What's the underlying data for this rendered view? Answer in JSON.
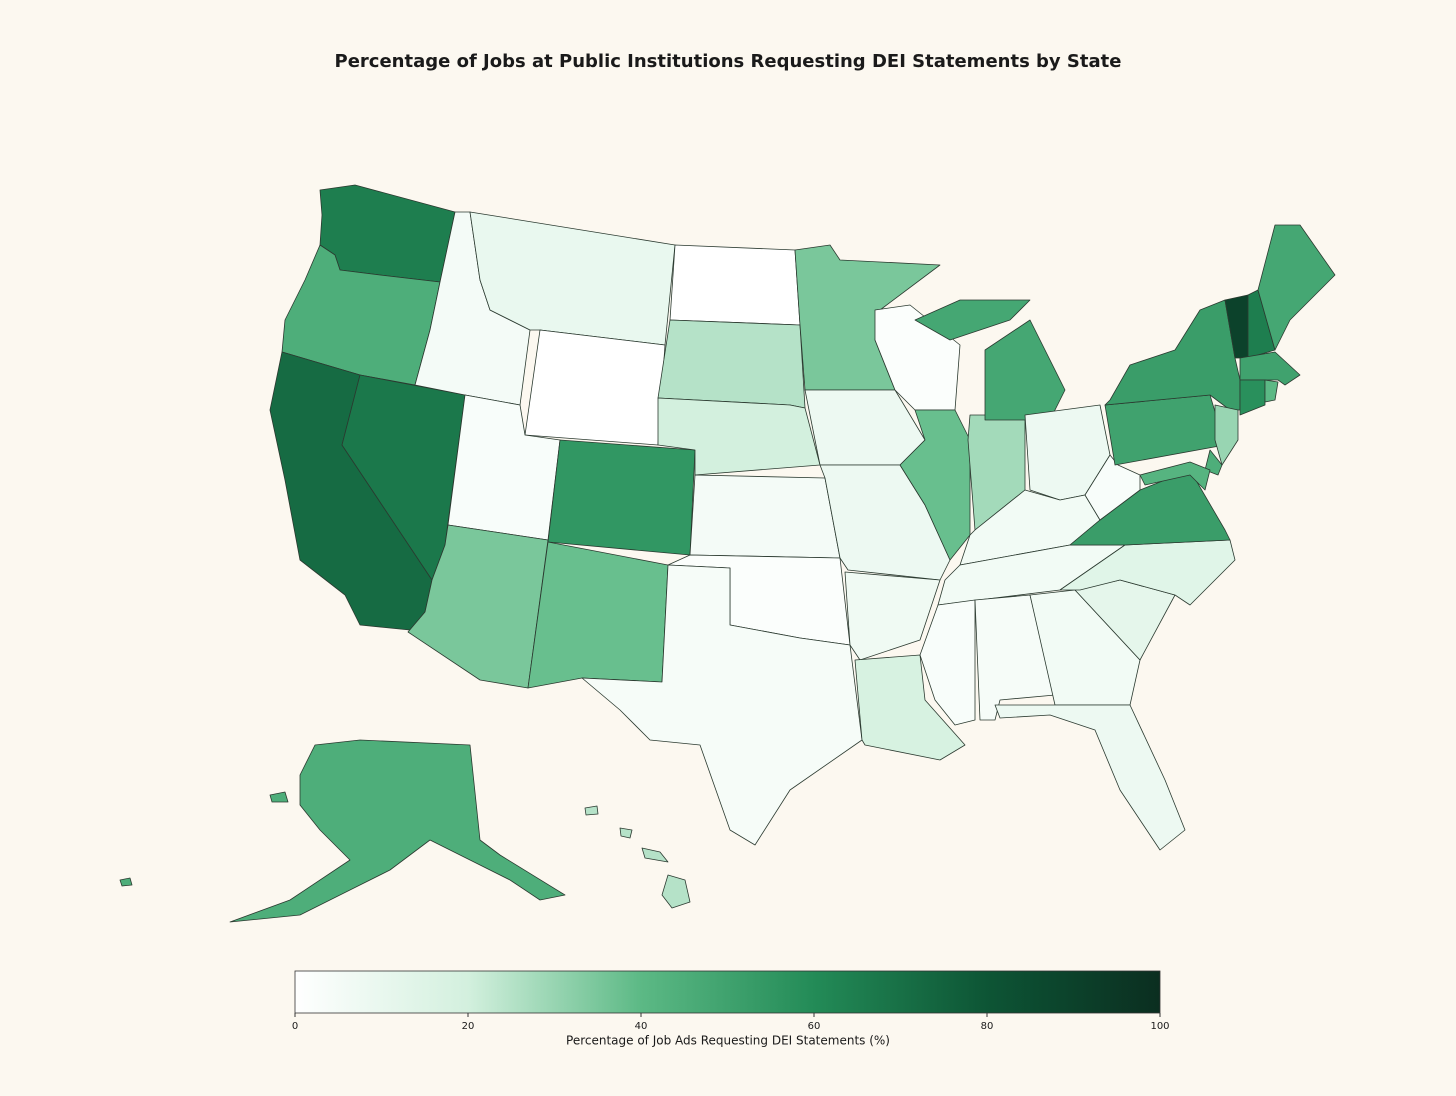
{
  "chart_data": {
    "type": "choropleth",
    "title": "Percentage of Jobs at Public Institutions Requesting DEI Statements by State",
    "values": [
      65,
      45,
      72,
      67,
      5,
      10,
      0,
      3,
      55,
      35,
      38,
      0,
      25,
      20,
      5,
      2,
      4,
      35,
      8,
      8,
      7,
      18,
      2,
      38,
      28,
      48,
      8,
      6,
      6,
      3,
      4,
      6,
      8,
      12,
      14,
      52,
      3,
      50,
      52,
      90,
      65,
      48,
      50,
      58,
      40,
      30,
      45,
      42,
      45,
      25
    ],
    "colorscale": [
      [
        0,
        "#ffffff"
      ],
      [
        20,
        "#d3f0de"
      ],
      [
        40,
        "#5cb985"
      ],
      [
        60,
        "#238b57"
      ],
      [
        80,
        "#0d5535"
      ],
      [
        100,
        "#0b2e20"
      ]
    ],
    "clim": [
      0,
      100
    ],
    "cticks": [
      0,
      20,
      40,
      60,
      80,
      100
    ],
    "colorbar_label": "Percentage of Job Ads Requesting DEI Statements (%)",
    "edge_color": "#2b3a30"
  }
}
